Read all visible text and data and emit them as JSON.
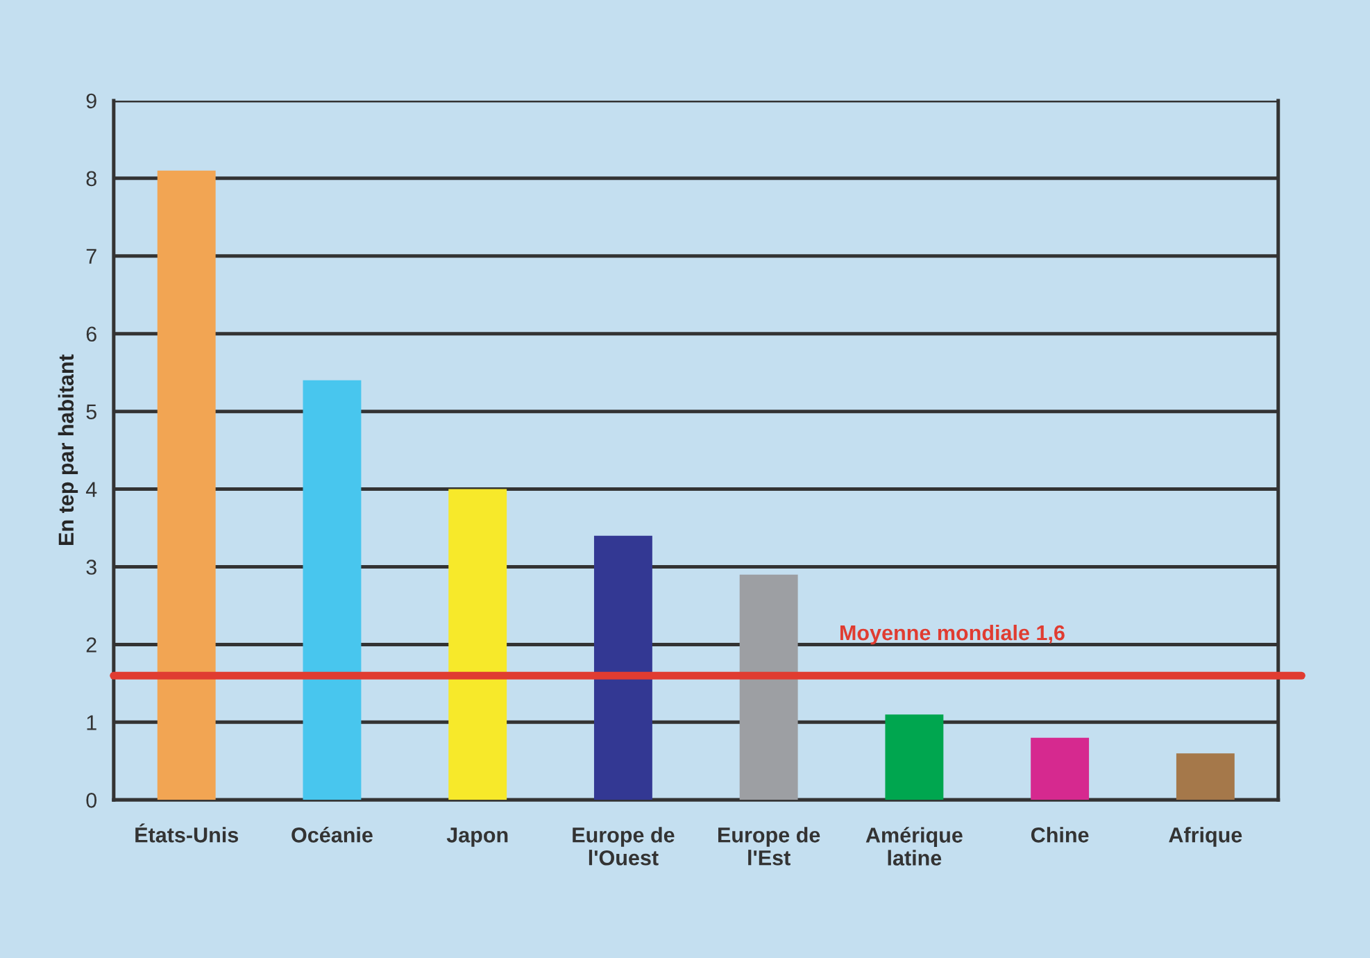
{
  "chart_data": {
    "type": "bar",
    "ylabel": "En tep par habitant",
    "categories": [
      "États-Unis",
      "Océanie",
      "Japon",
      "Europe de\nl'Ouest",
      "Europe de\nl'Est",
      "Amérique\nlatine",
      "Chine",
      "Afrique"
    ],
    "values": [
      8.1,
      5.4,
      4.0,
      3.4,
      2.9,
      1.1,
      0.8,
      0.6
    ],
    "colors": [
      "#f2a553",
      "#48c6ee",
      "#f7e92a",
      "#333893",
      "#9d9fa3",
      "#00a64f",
      "#d6298f",
      "#a5784a"
    ],
    "ylim": [
      0,
      9
    ],
    "yticks": [
      0,
      1,
      2,
      3,
      4,
      5,
      6,
      7,
      8,
      9
    ],
    "grid": "y",
    "ref_lines": [
      {
        "axis": "y",
        "value": 1.6,
        "label": "Moyenne mondiale 1,6",
        "color": "#e03c31"
      }
    ]
  }
}
